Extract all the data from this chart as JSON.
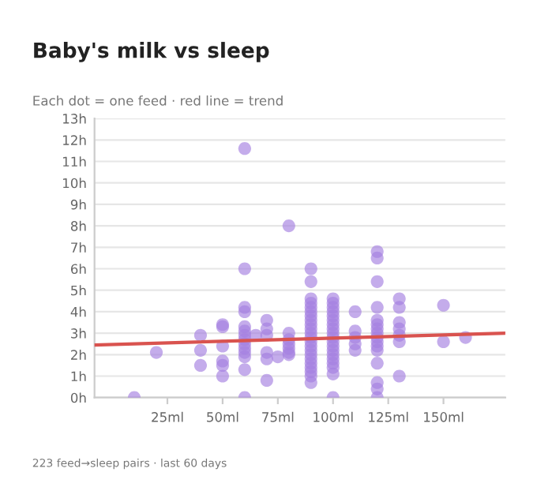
{
  "chart_data": {
    "type": "scatter",
    "title": "Baby's milk vs sleep",
    "subtitle": "Each dot = one feed · red line = trend",
    "annotations": [
      "223 feed→sleep pairs · last 60 days"
    ],
    "series": [
      {
        "color": "#a47fe0",
        "marker": "circle",
        "x": [
          10,
          20,
          40,
          40,
          40,
          50,
          50,
          50,
          50,
          50,
          50,
          60,
          60,
          60,
          60,
          60,
          60,
          60,
          60,
          60,
          60,
          60,
          60,
          60,
          60,
          65,
          70,
          70,
          70,
          70,
          70,
          70,
          75,
          80,
          80,
          80,
          80,
          80,
          80,
          80,
          90,
          90,
          90,
          90,
          90,
          90,
          90,
          90,
          90,
          90,
          90,
          90,
          90,
          90,
          90,
          90,
          90,
          90,
          90,
          90,
          90,
          90,
          100,
          100,
          100,
          100,
          100,
          100,
          100,
          100,
          100,
          100,
          100,
          100,
          100,
          100,
          100,
          100,
          100,
          100,
          100,
          110,
          110,
          110,
          110,
          110,
          120,
          120,
          120,
          120,
          120,
          120,
          120,
          120,
          120,
          120,
          120,
          120,
          120,
          120,
          120,
          120,
          130,
          130,
          130,
          130,
          130,
          130,
          130,
          150,
          150,
          160
        ],
        "values": [
          0,
          2.1,
          2.9,
          2.2,
          1.5,
          3.4,
          3.3,
          2.4,
          1.7,
          1.5,
          1.0,
          11.6,
          6.0,
          4.2,
          4.0,
          3.3,
          3.1,
          2.9,
          2.7,
          2.5,
          2.3,
          2.1,
          1.9,
          1.3,
          0,
          2.9,
          3.6,
          3.2,
          2.9,
          2.1,
          1.8,
          0.8,
          1.9,
          8.0,
          3.0,
          2.7,
          2.5,
          2.3,
          2.1,
          2.0,
          6.0,
          5.4,
          4.6,
          4.4,
          4.2,
          4.0,
          3.8,
          3.6,
          3.4,
          3.2,
          3.0,
          2.8,
          2.6,
          2.4,
          2.2,
          2.0,
          1.8,
          1.6,
          1.4,
          1.2,
          1.0,
          0.7,
          4.6,
          4.4,
          4.2,
          4.0,
          3.8,
          3.6,
          3.4,
          3.2,
          3.0,
          2.8,
          2.6,
          2.4,
          2.2,
          2.0,
          1.8,
          1.6,
          1.4,
          1.1,
          0,
          4.0,
          3.1,
          2.8,
          2.5,
          2.2,
          6.8,
          6.5,
          5.4,
          4.2,
          3.6,
          3.4,
          3.2,
          3.0,
          2.8,
          2.6,
          2.4,
          2.2,
          1.6,
          0.7,
          0.4,
          0,
          4.6,
          4.2,
          3.5,
          3.2,
          2.9,
          2.6,
          1.0,
          4.3,
          2.6,
          2.8
        ]
      },
      {
        "type": "line",
        "color": "#d9534f",
        "x": [
          -8,
          178
        ],
        "values": [
          2.45,
          3.0
        ]
      }
    ],
    "xlim": [
      -8,
      178
    ],
    "xticks": [
      {
        "value": 25,
        "label": "25ml"
      },
      {
        "value": 50,
        "label": "50ml"
      },
      {
        "value": 75,
        "label": "75ml"
      },
      {
        "value": 100,
        "label": "100ml"
      },
      {
        "value": 125,
        "label": "125ml"
      },
      {
        "value": 150,
        "label": "150ml"
      }
    ],
    "ylim": [
      0,
      13
    ],
    "yticks": [
      {
        "value": 0,
        "label": "0h"
      },
      {
        "value": 1,
        "label": "1h"
      },
      {
        "value": 2,
        "label": "2h"
      },
      {
        "value": 3,
        "label": "3h"
      },
      {
        "value": 4,
        "label": "4h"
      },
      {
        "value": 5,
        "label": "5h"
      },
      {
        "value": 6,
        "label": "6h"
      },
      {
        "value": 7,
        "label": "7h"
      },
      {
        "value": 8,
        "label": "8h"
      },
      {
        "value": 9,
        "label": "9h"
      },
      {
        "value": 10,
        "label": "10h"
      },
      {
        "value": 11,
        "label": "11h"
      },
      {
        "value": 12,
        "label": "12h"
      },
      {
        "value": 13,
        "label": "13h"
      }
    ],
    "grid": "y",
    "line_style": "solid",
    "legend": false
  }
}
